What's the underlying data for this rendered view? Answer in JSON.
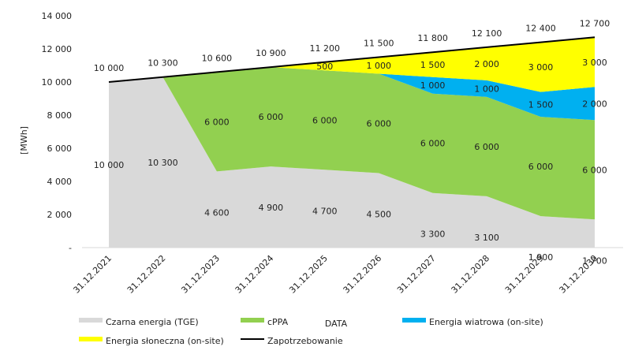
{
  "chart_data": {
    "type": "area",
    "ylabel": "[MWh]",
    "xlabel": "DATA",
    "ylim": [
      0,
      14000
    ],
    "yticks": [
      0,
      2000,
      4000,
      6000,
      8000,
      10000,
      12000,
      14000
    ],
    "ytick_labels": [
      "-",
      "2 000",
      "4 000",
      "6 000",
      "8 000",
      "10 000",
      "12 000",
      "14 000"
    ],
    "categories": [
      "31.12.2021",
      "31.12.2022",
      "31.12.2023",
      "31.12.2024",
      "31.12.2025",
      "31.12.2026",
      "31.12.2027",
      "31.12.2028",
      "31.12.2029",
      "31.12.2030"
    ],
    "series": [
      {
        "name": "Czarna energia (TGE)",
        "color": "#d9d9d9",
        "values": [
          10000,
          10300,
          4600,
          4900,
          4700,
          4500,
          3300,
          3100,
          1900,
          1700
        ],
        "labels": [
          "10 000",
          "10 300",
          "4 600",
          "4 900",
          "4 700",
          "4 500",
          "3 300",
          "3 100",
          "1 900",
          "1 700"
        ]
      },
      {
        "name": "cPPA",
        "color": "#92d050",
        "values": [
          0,
          0,
          6000,
          6000,
          6000,
          6000,
          6000,
          6000,
          6000,
          6000
        ],
        "labels": [
          "",
          "",
          "6 000",
          "6 000",
          "6 000",
          "6 000",
          "6 000",
          "6 000",
          "6 000",
          "6 000"
        ]
      },
      {
        "name": "Energia wiatrowa (on-site)",
        "color": "#00b0f0",
        "values": [
          0,
          0,
          0,
          0,
          0,
          0,
          1000,
          1000,
          1500,
          2000
        ],
        "labels": [
          "",
          "",
          "",
          "",
          "",
          "",
          "1 000",
          "1 000",
          "1 500",
          "2 000"
        ]
      },
      {
        "name": "Energia słoneczna (on-site)",
        "color": "#ffff00",
        "values": [
          0,
          0,
          0,
          0,
          500,
          1000,
          1500,
          2000,
          3000,
          3000
        ],
        "labels": [
          "",
          "",
          "",
          "",
          "500",
          "1 000",
          "1 500",
          "2 000",
          "3 000",
          "3 000"
        ]
      }
    ],
    "line": {
      "name": "Zapotrzebowanie",
      "color": "#000000",
      "values": [
        10000,
        10300,
        10600,
        10900,
        11200,
        11500,
        11800,
        12100,
        12400,
        12700
      ],
      "labels": [
        "10 000",
        "10 300",
        "10 600",
        "10 900",
        "11 200",
        "11 500",
        "11 800",
        "12 100",
        "12 400",
        "12 700"
      ]
    },
    "legend": {
      "position": "bottom",
      "items": [
        "Czarna energia (TGE)",
        "cPPA",
        "Energia wiatrowa (on-site)",
        "Energia słoneczna (on-site)",
        "Zapotrzebowanie"
      ]
    }
  }
}
